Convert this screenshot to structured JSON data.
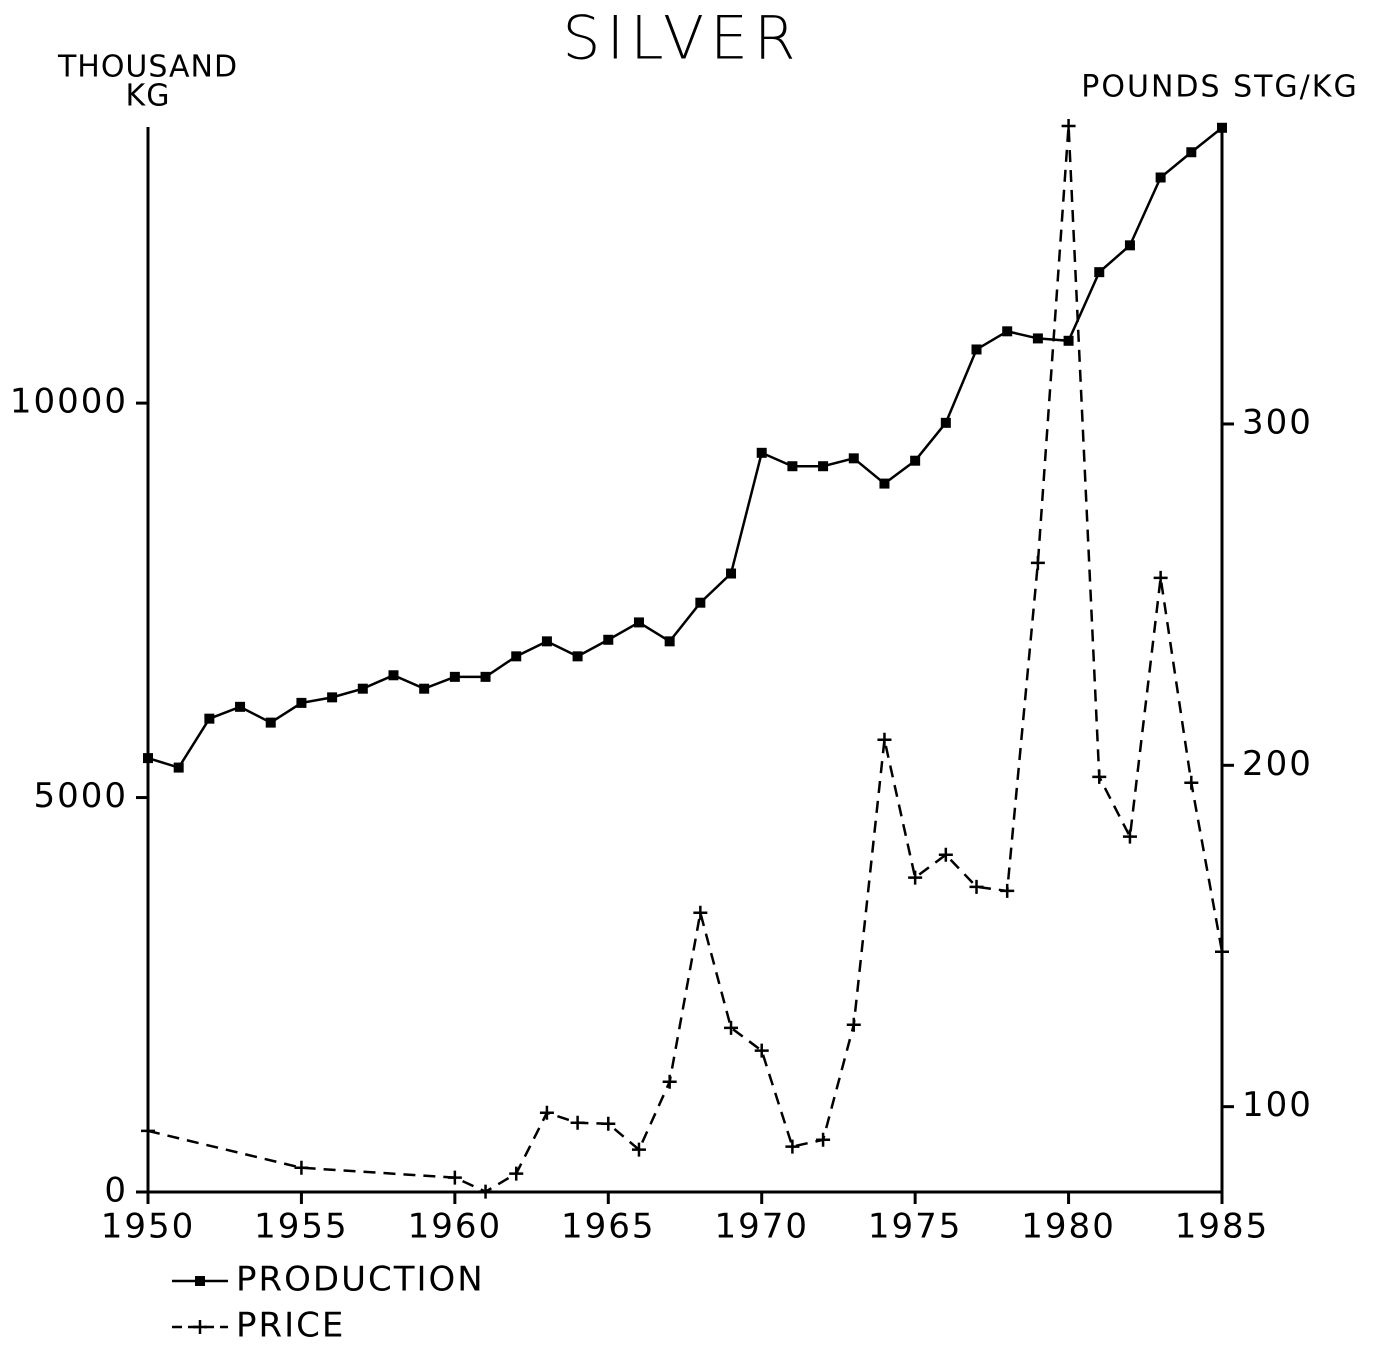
{
  "chart_data": {
    "type": "line",
    "title": "SILVER",
    "y_label": [
      "THOUSAND",
      "KG"
    ],
    "y2_label": "POUNDS STG/KG",
    "x": [
      1950,
      1951,
      1952,
      1953,
      1954,
      1955,
      1956,
      1957,
      1958,
      1959,
      1960,
      1961,
      1962,
      1963,
      1964,
      1965,
      1966,
      1967,
      1968,
      1969,
      1970,
      1971,
      1972,
      1973,
      1974,
      1975,
      1976,
      1977,
      1978,
      1979,
      1980,
      1981,
      1982,
      1983,
      1984,
      1985
    ],
    "xlim": [
      1950,
      1985
    ],
    "xticks": [
      1950,
      1955,
      1960,
      1965,
      1970,
      1975,
      1980,
      1985
    ],
    "ylim": [
      0,
      13500
    ],
    "yticks": [
      0,
      5000,
      10000
    ],
    "y2lim": [
      75,
      387
    ],
    "y2ticks": [
      100,
      200,
      300
    ],
    "series": [
      {
        "name": "PRODUCTION",
        "color": "#000000",
        "linestyle": "solid",
        "marker": "square",
        "values": [
          5500,
          5380,
          6000,
          6150,
          5950,
          6200,
          6270,
          6380,
          6550,
          6380,
          6530,
          6530,
          6790,
          6980,
          6790,
          7000,
          7220,
          6980,
          7470,
          7840,
          9370,
          9200,
          9200,
          9300,
          8980,
          9270,
          9750,
          10680,
          10910,
          10820,
          10790,
          11660,
          12000,
          12860,
          13180,
          13490
        ]
      },
      {
        "name": "PRICE",
        "color": "#000000",
        "linestyle": "dashed",
        "marker": "plus",
        "axis": "y2",
        "x": [
          1950,
          1955,
          1960,
          1961,
          1962,
          1963,
          1964,
          1965,
          1966,
          1967,
          1968,
          1969,
          1970,
          1971,
          1972,
          1973,
          1974,
          1975,
          1976,
          1977,
          1978,
          1979,
          1980,
          1981,
          1982,
          1983,
          1984,
          1985
        ],
        "values": [
          92.9,
          82.1,
          79.2,
          75.1,
          80.4,
          98.2,
          95.3,
          95.0,
          87.4,
          107.3,
          156.8,
          123.1,
          116.4,
          88.3,
          90.3,
          124.0,
          207.5,
          167.1,
          173.8,
          164.4,
          163.2,
          259.3,
          387.3,
          196.6,
          179.1,
          254.9,
          194.9,
          145.4
        ]
      }
    ]
  }
}
